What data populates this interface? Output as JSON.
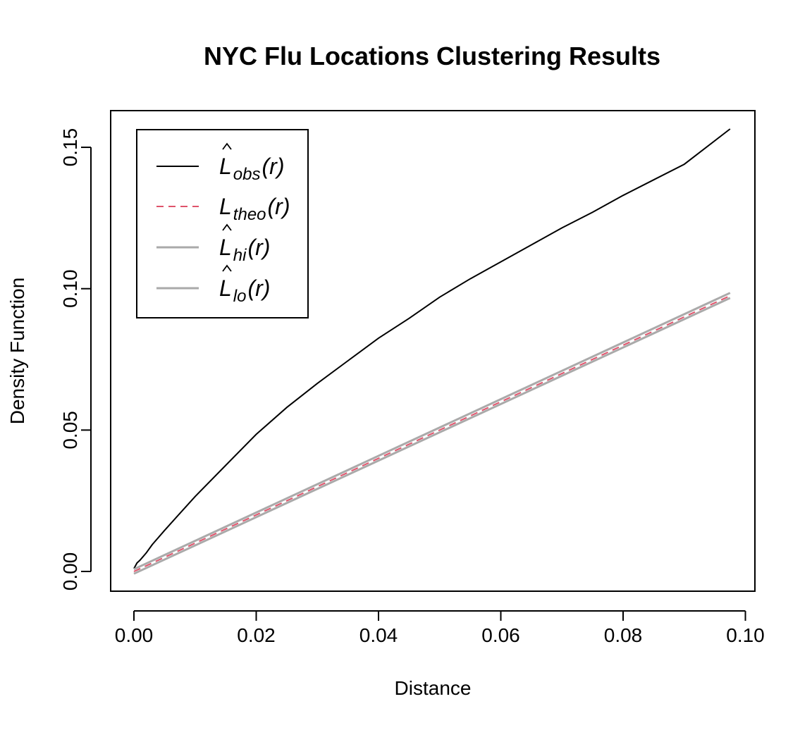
{
  "chart_data": {
    "type": "line",
    "title": "NYC Flu Locations Clustering Results",
    "xlabel": "Distance",
    "ylabel": "Density Function",
    "xlim": [
      0,
      0.1
    ],
    "ylim": [
      0,
      0.16
    ],
    "x_ticks": [
      0.0,
      0.02,
      0.04,
      0.06,
      0.08,
      0.1
    ],
    "x_tick_labels": [
      "0.00",
      "0.02",
      "0.04",
      "0.06",
      "0.08",
      "0.10"
    ],
    "y_ticks": [
      0.0,
      0.05,
      0.1,
      0.15
    ],
    "y_tick_labels": [
      "0.00",
      "0.05",
      "0.10",
      "0.15"
    ],
    "grid": false,
    "legend_position": "top-left",
    "legend": [
      {
        "base": "L",
        "hat": true,
        "sub": "obs",
        "arg": "(r)",
        "color": "#000000",
        "dash": "solid"
      },
      {
        "base": "L",
        "hat": false,
        "sub": "theo",
        "arg": "(r)",
        "color": "#DF536B",
        "dash": "dashed"
      },
      {
        "base": "L",
        "hat": true,
        "sub": "hi",
        "arg": "(r)",
        "color": "#AAAAAA",
        "dash": "solid"
      },
      {
        "base": "L",
        "hat": true,
        "sub": "lo",
        "arg": "(r)",
        "color": "#AAAAAA",
        "dash": "solid"
      }
    ],
    "series": [
      {
        "key": "obs",
        "color": "#000000",
        "dash": "solid",
        "x": [
          0.0,
          0.0005,
          0.001,
          0.002,
          0.003,
          0.005,
          0.0075,
          0.01,
          0.015,
          0.02,
          0.025,
          0.03,
          0.035,
          0.04,
          0.045,
          0.05,
          0.055,
          0.06,
          0.065,
          0.07,
          0.075,
          0.08,
          0.085,
          0.09,
          0.0975
        ],
        "y": [
          0.001,
          0.003,
          0.004,
          0.0065,
          0.0095,
          0.0145,
          0.0205,
          0.0265,
          0.0375,
          0.0485,
          0.058,
          0.0665,
          0.0745,
          0.0825,
          0.0895,
          0.097,
          0.1035,
          0.1095,
          0.1155,
          0.1215,
          0.127,
          0.133,
          0.1385,
          0.144,
          0.1565
        ]
      },
      {
        "key": "hi",
        "color": "#AAAAAA",
        "dash": "solid",
        "x": [
          0.0,
          0.0975
        ],
        "y": [
          0.0008,
          0.0985
        ]
      },
      {
        "key": "lo",
        "color": "#AAAAAA",
        "dash": "solid",
        "x": [
          0.0,
          0.0975
        ],
        "y": [
          -0.0008,
          0.0967
        ]
      },
      {
        "key": "theo",
        "color": "#DF536B",
        "dash": "dashed",
        "x": [
          0.0,
          0.0975
        ],
        "y": [
          0.0,
          0.0975
        ]
      }
    ]
  }
}
